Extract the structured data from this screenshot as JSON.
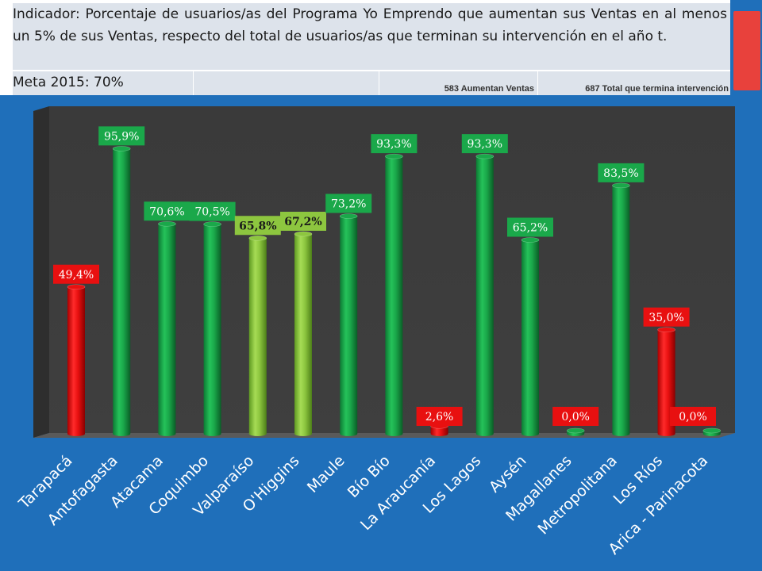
{
  "header": {
    "indicator_text": "Indicador: Porcentaje de usuarios/as del Programa Yo Emprendo que aumentan sus Ventas en al menos un 5% de sus Ventas, respecto del total de usuarios/as que terminan su intervención en el año t.",
    "goal_text": "Meta 2015: 70%",
    "increase_sales_text": "583 Aumentan Ventas",
    "total_finish_text": "687  Total que termina intervención"
  },
  "colors": {
    "background": "#1f6fba",
    "green": "#1aa84a",
    "light_green": "#8dc63f",
    "red": "#e81010"
  },
  "chart_data": {
    "type": "bar",
    "categories": [
      "Tarapacá",
      "Antofagasta",
      "Atacama",
      "Coquimbo",
      "Valparaíso",
      "O'Higgins",
      "Maule",
      "Bío Bío",
      "La Araucanía",
      "Los Lagos",
      "Aysén",
      "Magallanes",
      "Metropolitana",
      "Los Ríos",
      "Arica - Parinacota"
    ],
    "values": [
      49.4,
      95.9,
      70.6,
      70.5,
      65.8,
      67.2,
      73.2,
      93.3,
      2.6,
      93.3,
      65.2,
      0.0,
      83.5,
      35.0,
      0.0
    ],
    "data_labels": [
      "49,4%",
      "95,9%",
      "70,6%",
      "70,5%",
      "65,8%",
      "67,2%",
      "73,2%",
      "93,3%",
      "2,6%",
      "93,3%",
      "65,2%",
      "0,0%",
      "83,5%",
      "35,0%",
      "0,0%"
    ],
    "bar_colors": [
      "red",
      "green",
      "green",
      "green",
      "light_green",
      "light_green",
      "green",
      "green",
      "red",
      "green",
      "green",
      "green",
      "green",
      "red",
      "green"
    ],
    "label_colors": [
      "red",
      "green",
      "green",
      "green",
      "light_green",
      "light_green",
      "green",
      "green",
      "red",
      "green",
      "green",
      "red",
      "green",
      "red",
      "red"
    ],
    "ylim": [
      0,
      100
    ],
    "grid": false,
    "style": "3d-cylinder"
  }
}
